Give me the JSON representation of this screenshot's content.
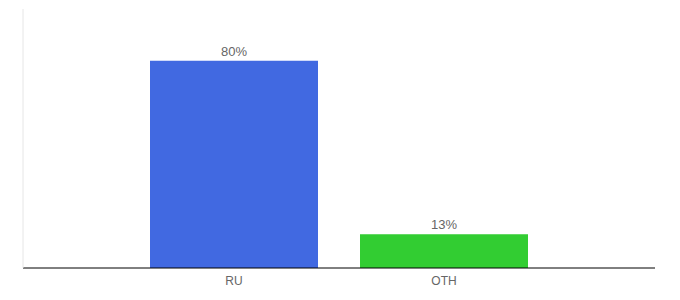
{
  "chart_data": {
    "type": "bar",
    "categories": [
      "RU",
      "OTH"
    ],
    "values": [
      80,
      13
    ],
    "value_labels": [
      "80%",
      "13%"
    ],
    "colors": [
      "#4169e1",
      "#32cd32"
    ],
    "ylim": [
      0,
      100
    ],
    "yticks": [],
    "data_labels": true,
    "tick_labels": "x",
    "grid": false
  }
}
